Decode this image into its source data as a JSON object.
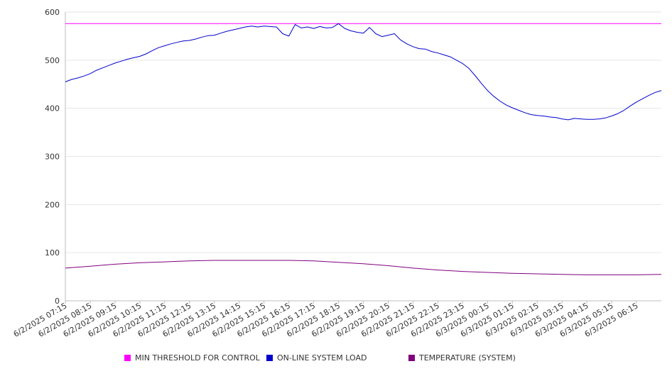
{
  "chart_data": {
    "type": "line",
    "title": "",
    "xlabel": "",
    "ylabel": "",
    "ylim": [
      0,
      600
    ],
    "y_ticks": [
      "0",
      "100",
      "200",
      "300",
      "400",
      "500",
      "600"
    ],
    "grid": true,
    "legend_position": "bottom",
    "x_tick_labels": [
      "6/2/2025 07:15",
      "6/2/2025 08:15",
      "6/2/2025 09:15",
      "6/2/2025 10:15",
      "6/2/2025 11:15",
      "6/2/2025 12:15",
      "6/2/2025 13:15",
      "6/2/2025 14:15",
      "6/2/2025 15:15",
      "6/2/2025 16:15",
      "6/2/2025 17:15",
      "6/2/2025 18:15",
      "6/2/2025 19:15",
      "6/2/2025 20:15",
      "6/2/2025 21:15",
      "6/2/2025 22:15",
      "6/2/2025 23:15",
      "6/3/2025 00:15",
      "6/3/2025 01:15",
      "6/3/2025 02:15",
      "6/3/2025 03:15",
      "6/3/2025 04:15",
      "6/3/2025 05:15",
      "6/3/2025 06:15"
    ],
    "x_range": [
      "6/2/2025 07:15",
      "6/3/2025 07:15"
    ],
    "series": [
      {
        "name": "MIN THRESHOLD FOR CONTROL",
        "color": "#ff00ff",
        "points": [
          [
            "6/2/2025 07:15",
            576
          ],
          [
            "6/3/2025 07:15",
            576
          ]
        ]
      },
      {
        "name": "ON-LINE SYSTEM LOAD",
        "color": "#0000cc",
        "points": [
          [
            "6/2/2025 07:15",
            455
          ],
          [
            "6/2/2025 07:30",
            460
          ],
          [
            "6/2/2025 07:45",
            463
          ],
          [
            "6/2/2025 08:00",
            467
          ],
          [
            "6/2/2025 08:15",
            472
          ],
          [
            "6/2/2025 08:30",
            479
          ],
          [
            "6/2/2025 08:45",
            484
          ],
          [
            "6/2/2025 09:00",
            489
          ],
          [
            "6/2/2025 09:15",
            494
          ],
          [
            "6/2/2025 09:30",
            498
          ],
          [
            "6/2/2025 09:45",
            502
          ],
          [
            "6/2/2025 10:00",
            505
          ],
          [
            "6/2/2025 10:15",
            508
          ],
          [
            "6/2/2025 10:30",
            513
          ],
          [
            "6/2/2025 10:45",
            520
          ],
          [
            "6/2/2025 11:00",
            526
          ],
          [
            "6/2/2025 11:15",
            530
          ],
          [
            "6/2/2025 11:30",
            534
          ],
          [
            "6/2/2025 11:45",
            537
          ],
          [
            "6/2/2025 12:00",
            540
          ],
          [
            "6/2/2025 12:15",
            541
          ],
          [
            "6/2/2025 12:30",
            544
          ],
          [
            "6/2/2025 12:45",
            548
          ],
          [
            "6/2/2025 13:00",
            551
          ],
          [
            "6/2/2025 13:15",
            552
          ],
          [
            "6/2/2025 13:30",
            556
          ],
          [
            "6/2/2025 13:45",
            560
          ],
          [
            "6/2/2025 14:00",
            563
          ],
          [
            "6/2/2025 14:15",
            566
          ],
          [
            "6/2/2025 14:30",
            569
          ],
          [
            "6/2/2025 14:45",
            571
          ],
          [
            "6/2/2025 15:00",
            569
          ],
          [
            "6/2/2025 15:15",
            571
          ],
          [
            "6/2/2025 15:30",
            570
          ],
          [
            "6/2/2025 15:45",
            569
          ],
          [
            "6/2/2025 16:00",
            555
          ],
          [
            "6/2/2025 16:15",
            550
          ],
          [
            "6/2/2025 16:30",
            574
          ],
          [
            "6/2/2025 16:45",
            567
          ],
          [
            "6/2/2025 17:00",
            569
          ],
          [
            "6/2/2025 17:15",
            566
          ],
          [
            "6/2/2025 17:30",
            570
          ],
          [
            "6/2/2025 17:45",
            567
          ],
          [
            "6/2/2025 18:00",
            568
          ],
          [
            "6/2/2025 18:15",
            576
          ],
          [
            "6/2/2025 18:30",
            566
          ],
          [
            "6/2/2025 18:45",
            561
          ],
          [
            "6/2/2025 19:00",
            558
          ],
          [
            "6/2/2025 19:15",
            556
          ],
          [
            "6/2/2025 19:30",
            568
          ],
          [
            "6/2/2025 19:45",
            555
          ],
          [
            "6/2/2025 20:00",
            549
          ],
          [
            "6/2/2025 20:15",
            552
          ],
          [
            "6/2/2025 20:30",
            555
          ],
          [
            "6/2/2025 20:45",
            542
          ],
          [
            "6/2/2025 21:00",
            534
          ],
          [
            "6/2/2025 21:15",
            528
          ],
          [
            "6/2/2025 21:30",
            524
          ],
          [
            "6/2/2025 21:45",
            523
          ],
          [
            "6/2/2025 22:00",
            518
          ],
          [
            "6/2/2025 22:15",
            515
          ],
          [
            "6/2/2025 22:30",
            511
          ],
          [
            "6/2/2025 22:45",
            507
          ],
          [
            "6/2/2025 23:00",
            500
          ],
          [
            "6/2/2025 23:15",
            493
          ],
          [
            "6/2/2025 23:30",
            483
          ],
          [
            "6/2/2025 23:45",
            468
          ],
          [
            "6/3/2025 00:00",
            452
          ],
          [
            "6/3/2025 00:15",
            437
          ],
          [
            "6/3/2025 00:30",
            425
          ],
          [
            "6/3/2025 00:45",
            415
          ],
          [
            "6/3/2025 01:00",
            407
          ],
          [
            "6/3/2025 01:15",
            401
          ],
          [
            "6/3/2025 01:30",
            396
          ],
          [
            "6/3/2025 01:45",
            391
          ],
          [
            "6/3/2025 02:00",
            387
          ],
          [
            "6/3/2025 02:15",
            385
          ],
          [
            "6/3/2025 02:30",
            384
          ],
          [
            "6/3/2025 02:45",
            382
          ],
          [
            "6/3/2025 03:00",
            381
          ],
          [
            "6/3/2025 03:15",
            378
          ],
          [
            "6/3/2025 03:30",
            376
          ],
          [
            "6/3/2025 03:45",
            379
          ],
          [
            "6/3/2025 04:00",
            378
          ],
          [
            "6/3/2025 04:15",
            377
          ],
          [
            "6/3/2025 04:30",
            377
          ],
          [
            "6/3/2025 04:45",
            378
          ],
          [
            "6/3/2025 05:00",
            380
          ],
          [
            "6/3/2025 05:15",
            384
          ],
          [
            "6/3/2025 05:30",
            389
          ],
          [
            "6/3/2025 05:45",
            396
          ],
          [
            "6/3/2025 06:00",
            405
          ],
          [
            "6/3/2025 06:15",
            413
          ],
          [
            "6/3/2025 06:30",
            420
          ],
          [
            "6/3/2025 06:45",
            427
          ],
          [
            "6/3/2025 07:00",
            433
          ],
          [
            "6/3/2025 07:15",
            437
          ]
        ]
      },
      {
        "name": "TEMPERATURE (SYSTEM)",
        "color": "#800080",
        "points": [
          [
            "6/2/2025 07:15",
            68
          ],
          [
            "6/2/2025 08:15",
            72
          ],
          [
            "6/2/2025 09:15",
            76
          ],
          [
            "6/2/2025 10:15",
            79
          ],
          [
            "6/2/2025 11:15",
            81
          ],
          [
            "6/2/2025 12:15",
            83
          ],
          [
            "6/2/2025 13:15",
            84
          ],
          [
            "6/2/2025 14:15",
            84
          ],
          [
            "6/2/2025 15:15",
            84
          ],
          [
            "6/2/2025 16:15",
            84
          ],
          [
            "6/2/2025 17:15",
            83
          ],
          [
            "6/2/2025 18:15",
            80
          ],
          [
            "6/2/2025 19:15",
            77
          ],
          [
            "6/2/2025 20:15",
            73
          ],
          [
            "6/2/2025 21:15",
            68
          ],
          [
            "6/2/2025 22:15",
            64
          ],
          [
            "6/2/2025 23:15",
            61
          ],
          [
            "6/3/2025 00:15",
            59
          ],
          [
            "6/3/2025 01:15",
            57
          ],
          [
            "6/3/2025 02:15",
            56
          ],
          [
            "6/3/2025 03:15",
            55
          ],
          [
            "6/3/2025 04:15",
            54
          ],
          [
            "6/3/2025 05:15",
            54
          ],
          [
            "6/3/2025 06:15",
            54
          ],
          [
            "6/3/2025 07:15",
            55
          ]
        ]
      }
    ]
  }
}
